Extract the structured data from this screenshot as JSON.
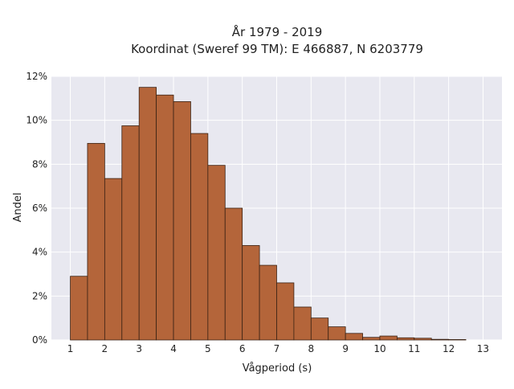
{
  "chart_data": {
    "type": "bar",
    "title_line1": "År 1979 - 2019",
    "title_line2": "Koordinat (Sweref 99 TM): E 466887, N 6203779",
    "xlabel": "Vågperiod (s)",
    "ylabel": "Andel",
    "xlim": [
      0.45,
      13.55
    ],
    "ylim": [
      0,
      12
    ],
    "x_ticks": [
      1,
      2,
      3,
      4,
      5,
      6,
      7,
      8,
      9,
      10,
      11,
      12,
      13
    ],
    "y_ticks": [
      0,
      2,
      4,
      6,
      8,
      10,
      12
    ],
    "y_tick_suffix": "%",
    "grid": true,
    "bin_width": 0.5,
    "bins": [
      {
        "x0": 1.0,
        "value": 2.9
      },
      {
        "x0": 1.5,
        "value": 8.95
      },
      {
        "x0": 2.0,
        "value": 7.35
      },
      {
        "x0": 2.5,
        "value": 9.75
      },
      {
        "x0": 3.0,
        "value": 11.5
      },
      {
        "x0": 3.5,
        "value": 11.15
      },
      {
        "x0": 4.0,
        "value": 10.85
      },
      {
        "x0": 4.5,
        "value": 9.4
      },
      {
        "x0": 5.0,
        "value": 7.95
      },
      {
        "x0": 5.5,
        "value": 6.0
      },
      {
        "x0": 6.0,
        "value": 4.3
      },
      {
        "x0": 6.5,
        "value": 3.4
      },
      {
        "x0": 7.0,
        "value": 2.6
      },
      {
        "x0": 7.5,
        "value": 1.5
      },
      {
        "x0": 8.0,
        "value": 1.0
      },
      {
        "x0": 8.5,
        "value": 0.6
      },
      {
        "x0": 9.0,
        "value": 0.3
      },
      {
        "x0": 9.5,
        "value": 0.12
      },
      {
        "x0": 10.0,
        "value": 0.18
      },
      {
        "x0": 10.5,
        "value": 0.1
      },
      {
        "x0": 11.0,
        "value": 0.08
      },
      {
        "x0": 11.5,
        "value": 0.03
      },
      {
        "x0": 12.0,
        "value": 0.02
      }
    ],
    "colors": {
      "bar_fill": "#b4653a",
      "bar_stroke": "#3a2214",
      "plot_background": "#e8e8f0",
      "grid": "#ffffff"
    }
  }
}
